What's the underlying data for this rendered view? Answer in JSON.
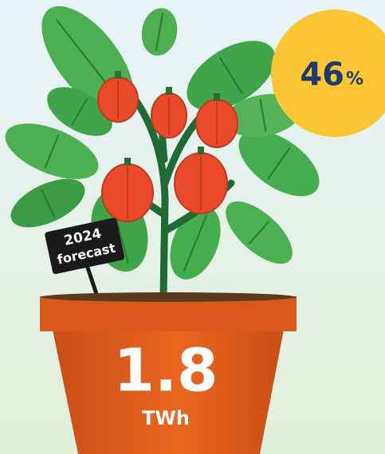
{
  "badge": {
    "value": "46",
    "unit": "%"
  },
  "sign": {
    "line1": "2024",
    "line2": "forecast"
  },
  "pot": {
    "value": "1.8",
    "unit": "TWh"
  }
}
